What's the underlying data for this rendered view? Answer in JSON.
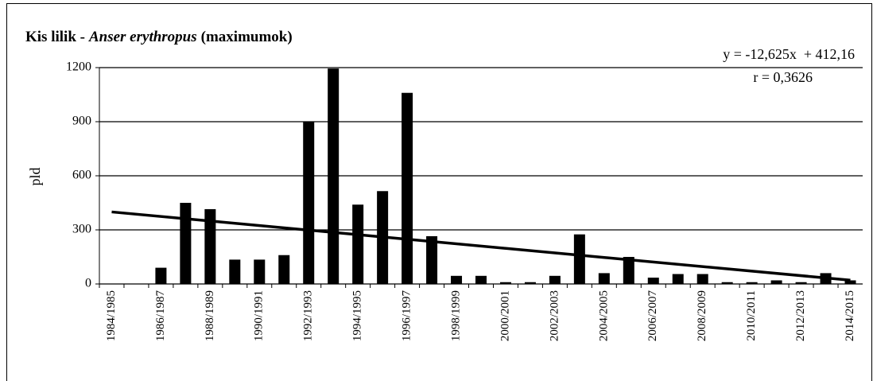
{
  "chart_data": {
    "type": "bar",
    "title": [
      "Kis lilik -",
      "Anser erythropus",
      "(maximumok)"
    ],
    "y_label": "pld",
    "equation": "y = -12,625x  + 412,16",
    "r_label": "r = 0,3626",
    "trendline": {
      "slope": -12.625,
      "intercept": 412.16
    },
    "categories": [
      "1984/1985",
      null,
      "1986/1987",
      null,
      "1988/1989",
      null,
      "1990/1991",
      null,
      "1992/1993",
      null,
      "1994/1995",
      null,
      "1996/1997",
      null,
      "1998/1999",
      null,
      "2000/2001",
      null,
      "2002/2003",
      null,
      "2004/2005",
      null,
      "2006/2007",
      null,
      "2008/2009",
      null,
      "2010/2011",
      null,
      "2012/2013",
      null,
      "2014/2015"
    ],
    "values": [
      0,
      0,
      90,
      450,
      415,
      135,
      135,
      160,
      900,
      1195,
      440,
      515,
      1060,
      265,
      45,
      45,
      10,
      10,
      45,
      275,
      60,
      150,
      35,
      55,
      55,
      10,
      10,
      20,
      10,
      60,
      20
    ],
    "color": "#000000",
    "ylim": [
      0,
      1200
    ],
    "yticks": [
      0,
      300,
      600,
      900,
      1200
    ],
    "grid": true
  }
}
